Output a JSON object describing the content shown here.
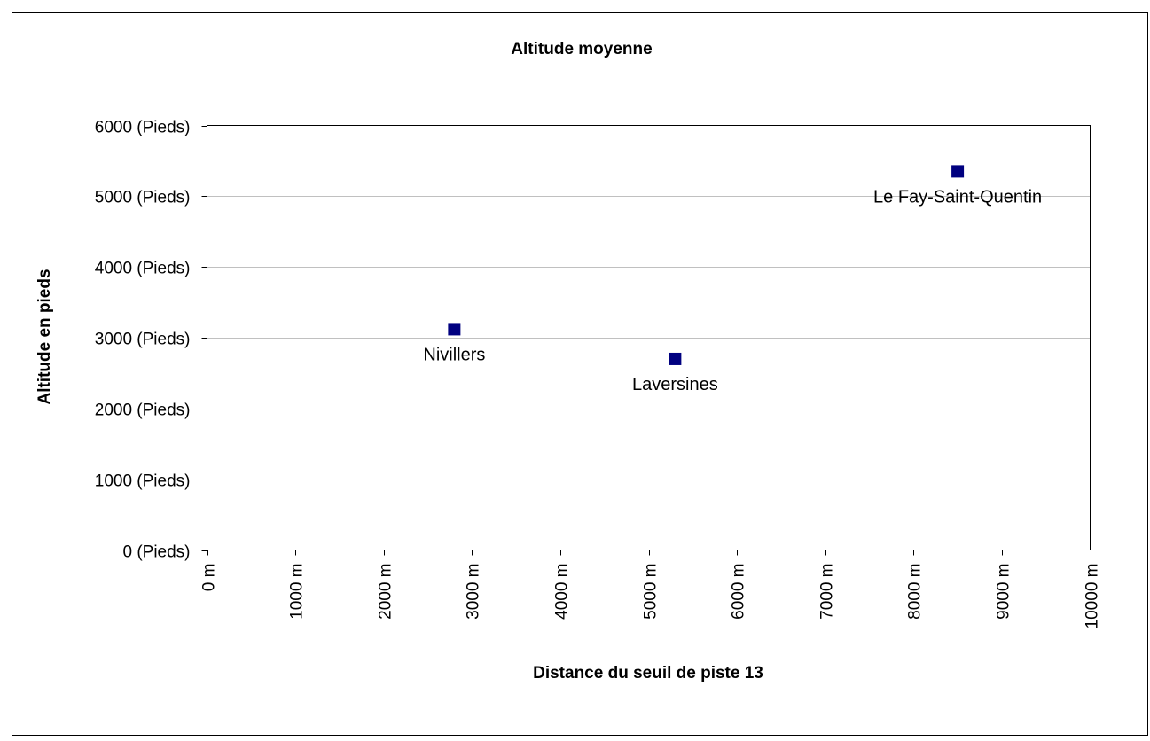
{
  "chart_data": {
    "type": "scatter",
    "title": "Altitude moyenne",
    "xlabel": "Distance du seuil de piste 13",
    "ylabel": "Altitude en pieds",
    "xlim": [
      0,
      10000
    ],
    "ylim": [
      0,
      6000
    ],
    "x_ticks": [
      0,
      1000,
      2000,
      3000,
      4000,
      5000,
      6000,
      7000,
      8000,
      9000,
      10000
    ],
    "x_tick_labels": [
      "0 m",
      "1000 m",
      "2000 m",
      "3000 m",
      "4000 m",
      "5000 m",
      "6000 m",
      "7000 m",
      "8000 m",
      "9000 m",
      "10000 m"
    ],
    "y_ticks": [
      0,
      1000,
      2000,
      3000,
      4000,
      5000,
      6000
    ],
    "y_tick_labels": [
      "0 (Pieds)",
      "1000 (Pieds)",
      "2000 (Pieds)",
      "3000 (Pieds)",
      "4000 (Pieds)",
      "5000 (Pieds)",
      "6000 (Pieds)"
    ],
    "grid": "horizontal",
    "legend": "none",
    "marker_color": "#000080",
    "grid_color": "#c0c0c0",
    "series": [
      {
        "points": [
          {
            "x": 2800,
            "y": 3120,
            "label": "Nivillers"
          },
          {
            "x": 5300,
            "y": 2700,
            "label": "Laversines"
          },
          {
            "x": 8500,
            "y": 5350,
            "label": "Le Fay-Saint-Quentin"
          }
        ]
      }
    ]
  }
}
